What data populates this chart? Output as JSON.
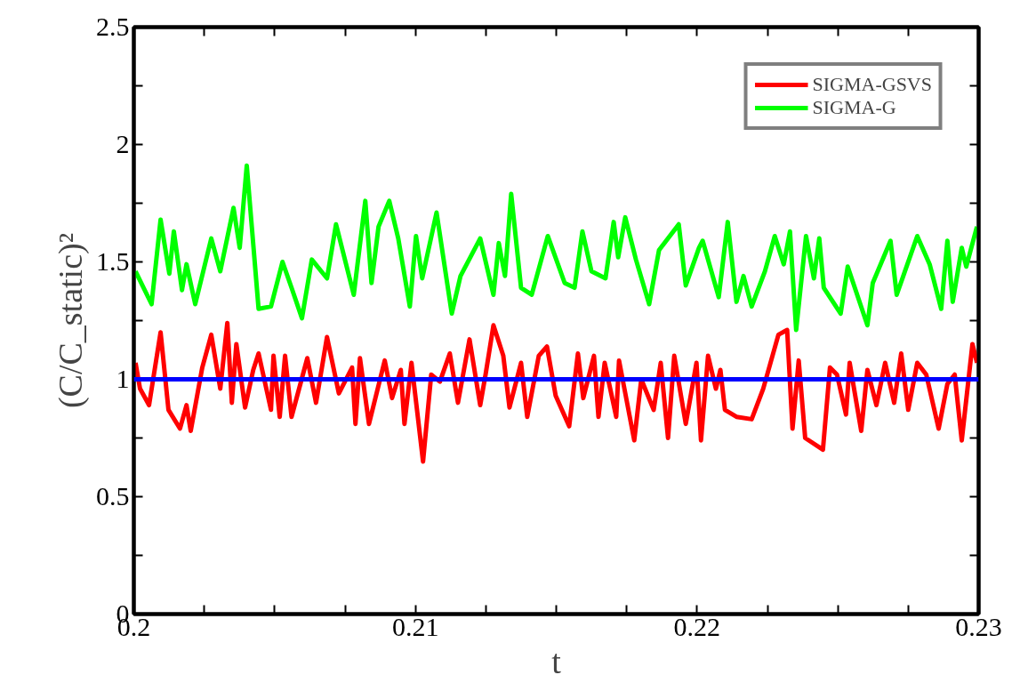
{
  "chart_data": {
    "type": "line",
    "xlabel": "t",
    "ylabel": "(C/C_static)²",
    "xlim": [
      0.2,
      0.23
    ],
    "ylim": [
      0,
      2.5
    ],
    "xticks": [
      0.2,
      {
        "value": 0.2025,
        "label": null
      },
      {
        "value": 0.205,
        "label": null
      },
      {
        "value": 0.2075,
        "label": null
      },
      0.21,
      {
        "value": 0.2125,
        "label": null
      },
      {
        "value": 0.215,
        "label": null
      },
      {
        "value": 0.2175,
        "label": null
      },
      0.22,
      {
        "value": 0.2225,
        "label": null
      },
      {
        "value": 0.225,
        "label": null
      },
      {
        "value": 0.2275,
        "label": null
      },
      0.23
    ],
    "yticks": [
      0,
      {
        "value": 0.25,
        "label": null
      },
      0.5,
      {
        "value": 0.75,
        "label": null
      },
      1,
      {
        "value": 1.25,
        "label": null
      },
      1.5,
      {
        "value": 1.75,
        "label": null
      },
      2,
      {
        "value": 2.25,
        "label": null
      },
      2.5
    ],
    "grid": false,
    "legend": "top right",
    "marker": "none",
    "line_style": "solid",
    "ref_lines": [
      {
        "axis": "y",
        "value": 1,
        "color": "#0000ff"
      }
    ],
    "series": [
      {
        "name": "SIGMA-GSVS",
        "color": "#ff0000",
        "x": [
          0.20006,
          0.20022,
          0.20054,
          0.20095,
          0.20123,
          0.20164,
          0.20187,
          0.20202,
          0.20243,
          0.20275,
          0.20307,
          0.20332,
          0.20348,
          0.20364,
          0.20395,
          0.20424,
          0.20443,
          0.20487,
          0.20496,
          0.20518,
          0.20537,
          0.2056,
          0.20616,
          0.20647,
          0.20686,
          0.20728,
          0.20775,
          0.20787,
          0.20803,
          0.20835,
          0.20891,
          0.20917,
          0.20948,
          0.20961,
          0.20986,
          0.21027,
          0.21056,
          0.21087,
          0.21122,
          0.21151,
          0.21192,
          0.2123,
          0.21249,
          0.21277,
          0.21312,
          0.21334,
          0.21375,
          0.21397,
          0.21438,
          0.21467,
          0.21498,
          0.21546,
          0.21577,
          0.21596,
          0.21634,
          0.2165,
          0.21672,
          0.21713,
          0.21723,
          0.21777,
          0.21802,
          0.21846,
          0.21871,
          0.21897,
          0.21919,
          0.2196,
          0.21998,
          0.22014,
          0.22039,
          0.22067,
          0.22083,
          0.22099,
          0.2214,
          0.22194,
          0.22235,
          0.22289,
          0.2232,
          0.22339,
          0.22361,
          0.22384,
          0.22447,
          0.22472,
          0.22497,
          0.22529,
          0.22542,
          0.22583,
          0.22605,
          0.22637,
          0.22668,
          0.227,
          0.22725,
          0.2275,
          0.22782,
          0.22814,
          0.22858,
          0.22889,
          0.22915,
          0.2294,
          0.22978,
          0.22994
        ],
        "values": [
          1.07,
          0.96,
          0.89,
          1.2,
          0.87,
          0.79,
          0.89,
          0.78,
          1.05,
          1.19,
          0.96,
          1.24,
          0.9,
          1.15,
          0.88,
          1.04,
          1.11,
          0.87,
          1.1,
          0.84,
          1.1,
          0.84,
          1.09,
          0.9,
          1.18,
          0.94,
          1.05,
          0.81,
          1.09,
          0.81,
          1.08,
          0.92,
          1.04,
          0.81,
          1.07,
          0.65,
          1.02,
          0.99,
          1.11,
          0.9,
          1.17,
          0.89,
          1.02,
          1.23,
          1.1,
          0.88,
          1.07,
          0.84,
          1.1,
          1.14,
          0.93,
          0.8,
          1.11,
          0.92,
          1.1,
          0.84,
          1.07,
          0.84,
          1.08,
          0.74,
          1.0,
          0.87,
          1.07,
          0.75,
          1.1,
          0.81,
          1.07,
          0.74,
          1.1,
          0.96,
          1.04,
          0.87,
          0.84,
          0.83,
          0.96,
          1.19,
          1.21,
          0.79,
          1.08,
          0.75,
          0.7,
          1.05,
          1.02,
          0.85,
          1.07,
          0.78,
          1.04,
          0.89,
          1.07,
          0.9,
          1.11,
          0.87,
          1.07,
          1.02,
          0.79,
          0.98,
          1.02,
          0.74,
          1.15,
          1.07
        ]
      },
      {
        "name": "SIGMA-G",
        "color": "#00ff00",
        "x": [
          0.20006,
          0.20063,
          0.20095,
          0.20126,
          0.20142,
          0.20171,
          0.20187,
          0.20218,
          0.20275,
          0.20307,
          0.20354,
          0.20376,
          0.20401,
          0.20443,
          0.20487,
          0.20528,
          0.2056,
          0.20597,
          0.20632,
          0.20686,
          0.20718,
          0.20781,
          0.20822,
          0.20844,
          0.20869,
          0.20907,
          0.20939,
          0.2098,
          0.21002,
          0.21024,
          0.21075,
          0.21129,
          0.2116,
          0.2123,
          0.21277,
          0.21296,
          0.21318,
          0.2134,
          0.21375,
          0.21413,
          0.2147,
          0.2153,
          0.21565,
          0.21593,
          0.21625,
          0.21675,
          0.21704,
          0.2172,
          0.21745,
          0.21783,
          0.2183,
          0.21865,
          0.21935,
          0.2196,
          0.22007,
          0.2202,
          0.22077,
          0.22109,
          0.2214,
          0.22165,
          0.22194,
          0.22241,
          0.22276,
          0.22308,
          0.2233,
          0.22352,
          0.22387,
          0.22415,
          0.22434,
          0.2245,
          0.2251,
          0.22535,
          0.22605,
          0.22624,
          0.22687,
          0.22709,
          0.22782,
          0.22826,
          0.22867,
          0.22889,
          0.22908,
          0.2294,
          0.22956,
          0.22994
        ],
        "values": [
          1.46,
          1.32,
          1.68,
          1.45,
          1.63,
          1.38,
          1.49,
          1.32,
          1.6,
          1.46,
          1.73,
          1.56,
          1.91,
          1.3,
          1.31,
          1.5,
          1.39,
          1.26,
          1.51,
          1.43,
          1.66,
          1.36,
          1.76,
          1.41,
          1.65,
          1.76,
          1.6,
          1.31,
          1.61,
          1.43,
          1.71,
          1.28,
          1.44,
          1.6,
          1.36,
          1.58,
          1.44,
          1.79,
          1.39,
          1.36,
          1.61,
          1.41,
          1.39,
          1.63,
          1.46,
          1.43,
          1.67,
          1.52,
          1.69,
          1.51,
          1.32,
          1.55,
          1.66,
          1.4,
          1.56,
          1.59,
          1.35,
          1.67,
          1.33,
          1.44,
          1.31,
          1.46,
          1.61,
          1.49,
          1.63,
          1.21,
          1.61,
          1.43,
          1.6,
          1.39,
          1.28,
          1.48,
          1.23,
          1.41,
          1.59,
          1.36,
          1.61,
          1.49,
          1.3,
          1.59,
          1.33,
          1.56,
          1.48,
          1.65
        ]
      }
    ]
  }
}
